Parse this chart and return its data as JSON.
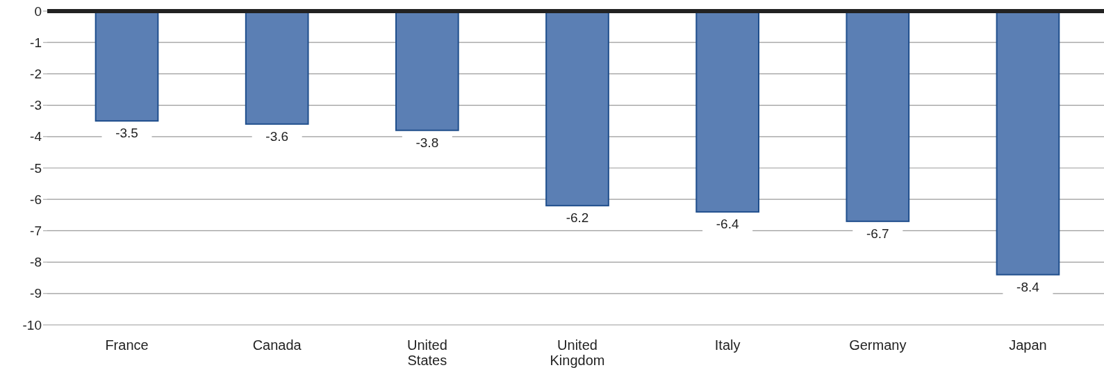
{
  "chart_data": {
    "type": "bar",
    "categories": [
      "France",
      "Canada",
      "United States",
      "United Kingdom",
      "Italy",
      "Germany",
      "Japan"
    ],
    "values": [
      -3.5,
      -3.6,
      -3.8,
      -6.2,
      -6.4,
      -6.7,
      -8.4
    ],
    "color": "#5b7fb4",
    "ylim": [
      -10,
      0
    ],
    "yticks": [
      0,
      -1,
      -2,
      -3,
      -4,
      -5,
      -6,
      -7,
      -8,
      -9,
      -10
    ],
    "grid": "y",
    "data_labels": true
  }
}
